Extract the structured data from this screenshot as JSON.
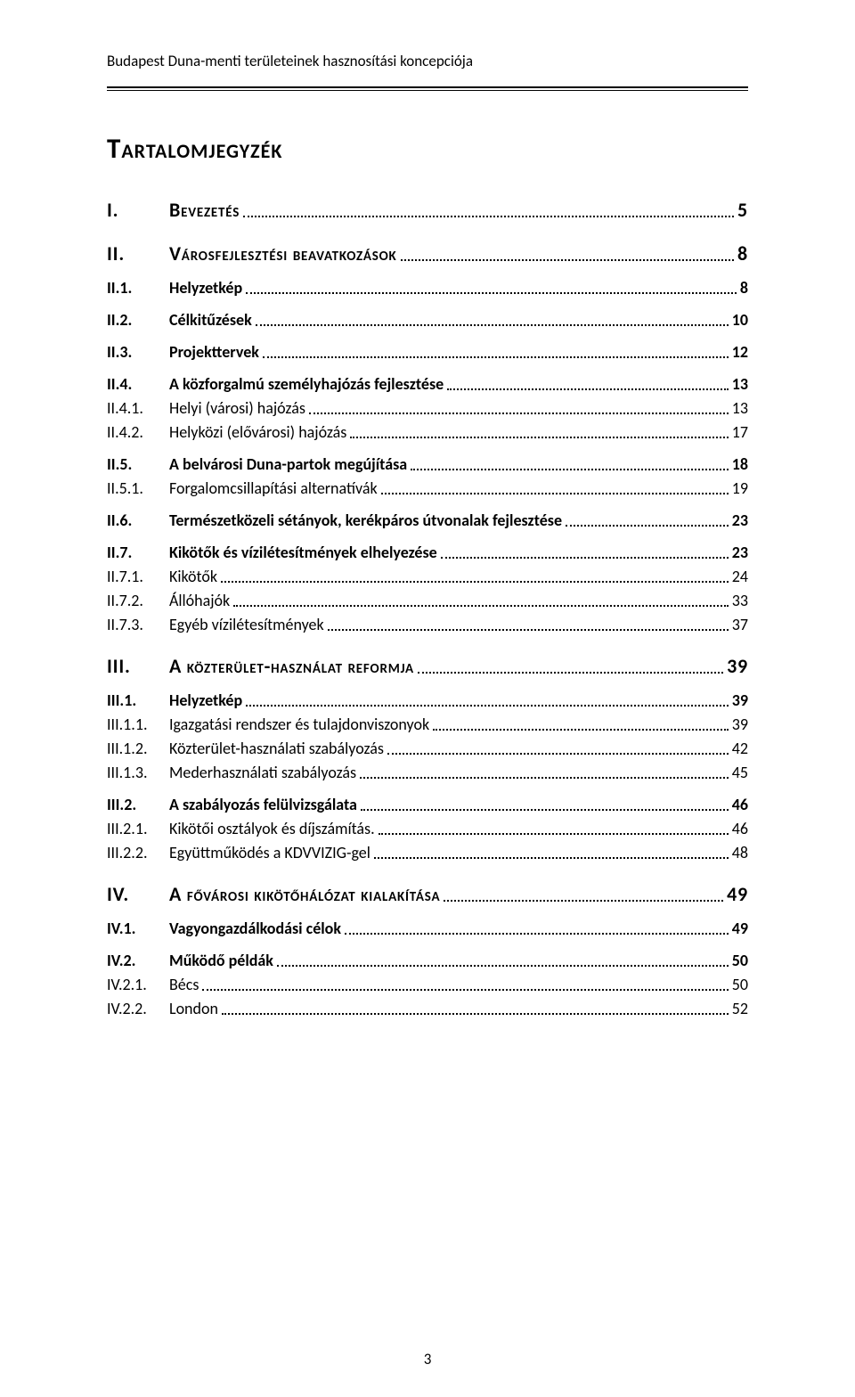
{
  "header": {
    "running": "Budapest Duna-menti területeinek hasznosítási koncepciója"
  },
  "title": "Tartalomjegyzék",
  "page_number": "3",
  "toc": [
    {
      "level": 1,
      "num": "I.",
      "label": "Bevezetés",
      "page": "5"
    },
    {
      "level": 1,
      "num": "II.",
      "label": "Városfejlesztési beavatkozások",
      "page": "8"
    },
    {
      "level": 2,
      "num": "II.1.",
      "label": "Helyzetkép",
      "page": "8"
    },
    {
      "level": 2,
      "num": "II.2.",
      "label": "Célkitűzések",
      "page": "10"
    },
    {
      "level": 2,
      "num": "II.3.",
      "label": "Projekttervek",
      "page": "12"
    },
    {
      "level": 2,
      "num": "II.4.",
      "label": "A közforgalmú személyhajózás fejlesztése",
      "page": "13"
    },
    {
      "level": 3,
      "num": "II.4.1.",
      "label": "Helyi (városi) hajózás",
      "page": "13"
    },
    {
      "level": 3,
      "num": "II.4.2.",
      "label": "Helyközi (elővárosi) hajózás",
      "page": "17"
    },
    {
      "level": 2,
      "num": "II.5.",
      "label": "A belvárosi Duna-partok megújítása",
      "page": "18"
    },
    {
      "level": 3,
      "num": "II.5.1.",
      "label": "Forgalomcsillapítási alternatívák",
      "page": "19"
    },
    {
      "level": 2,
      "num": "II.6.",
      "label": "Természetközeli sétányok, kerékpáros útvonalak fejlesztése",
      "page": "23"
    },
    {
      "level": 2,
      "num": "II.7.",
      "label": "Kikötők és vízilétesítmények elhelyezése",
      "page": "23"
    },
    {
      "level": 3,
      "num": "II.7.1.",
      "label": "Kikötők",
      "page": "24"
    },
    {
      "level": 3,
      "num": "II.7.2.",
      "label": "Állóhajók",
      "page": "33"
    },
    {
      "level": 3,
      "num": "II.7.3.",
      "label": "Egyéb vízilétesítmények",
      "page": "37"
    },
    {
      "level": 1,
      "num": "III.",
      "label": "A közterület-használat reformja",
      "page": "39"
    },
    {
      "level": 2,
      "num": "III.1.",
      "label": "Helyzetkép",
      "page": "39"
    },
    {
      "level": 3,
      "num": "III.1.1.",
      "label": "Igazgatási rendszer és tulajdonviszonyok",
      "page": "39"
    },
    {
      "level": 3,
      "num": "III.1.2.",
      "label": "Közterület-használati szabályozás",
      "page": "42"
    },
    {
      "level": 3,
      "num": "III.1.3.",
      "label": "Mederhasználati szabályozás",
      "page": "45"
    },
    {
      "level": 2,
      "num": "III.2.",
      "label": "A szabályozás felülvizsgálata",
      "page": "46"
    },
    {
      "level": 3,
      "num": "III.2.1.",
      "label": "Kikötői osztályok és díjszámítás.",
      "page": "46"
    },
    {
      "level": 3,
      "num": "III.2.2.",
      "label": "Együttműködés a KDVVIZIG-gel",
      "page": "48"
    },
    {
      "level": 1,
      "num": "IV.",
      "label": "A fővárosi kikötőhálózat kialakítása",
      "page": "49"
    },
    {
      "level": 2,
      "num": "IV.1.",
      "label": "Vagyongazdálkodási célok",
      "page": "49"
    },
    {
      "level": 2,
      "num": "IV.2.",
      "label": "Működő példák",
      "page": "50"
    },
    {
      "level": 3,
      "num": "IV.2.1.",
      "label": "Bécs",
      "page": "50"
    },
    {
      "level": 3,
      "num": "IV.2.2.",
      "label": "London",
      "page": "52"
    }
  ]
}
